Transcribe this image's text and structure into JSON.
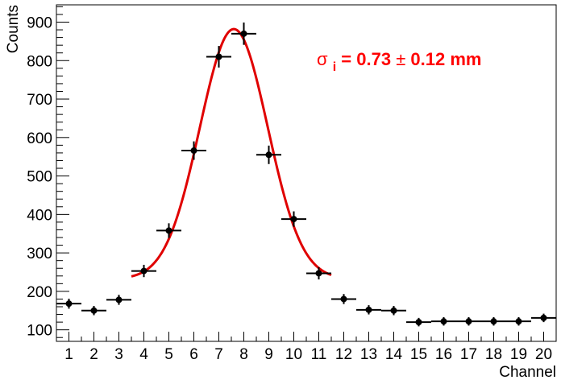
{
  "chart_data": {
    "type": "scatter",
    "title": "",
    "xlabel": "Channel",
    "ylabel": "Counts",
    "xlim": [
      0.5,
      20.5
    ],
    "ylim": [
      70,
      945
    ],
    "x_ticks": [
      1,
      2,
      3,
      4,
      5,
      6,
      7,
      8,
      9,
      10,
      11,
      12,
      13,
      14,
      15,
      16,
      17,
      18,
      19,
      20
    ],
    "y_ticks": [
      100,
      200,
      300,
      400,
      500,
      600,
      700,
      800,
      900
    ],
    "grid": false,
    "series": [
      {
        "kind": "points_with_errors",
        "x": [
          1,
          2,
          3,
          4,
          5,
          6,
          7,
          8,
          9,
          10,
          11,
          12,
          13,
          14,
          15,
          16,
          17,
          18,
          19,
          20
        ],
        "y": [
          168,
          150,
          178,
          253,
          358,
          566,
          810,
          870,
          555,
          388,
          247,
          180,
          152,
          150,
          120,
          122,
          122,
          122,
          122,
          131
        ],
        "x_err": 0.5,
        "y_err": [
          13,
          12,
          13,
          16,
          19,
          24,
          28,
          29,
          24,
          20,
          16,
          13,
          12,
          12,
          11,
          11,
          11,
          11,
          11,
          11
        ],
        "color": "#000000"
      },
      {
        "kind": "gaussian_fit",
        "amplitude": 650,
        "mean": 7.6,
        "sigma": 1.36,
        "offset": 232,
        "x_range": [
          3.5,
          11.5
        ],
        "color": "#e00000"
      }
    ],
    "annotation": {
      "symbol": "σ",
      "subscript": "i",
      "text": " =  0.73",
      "pm": "±",
      "text2": " 0.12 mm"
    }
  }
}
